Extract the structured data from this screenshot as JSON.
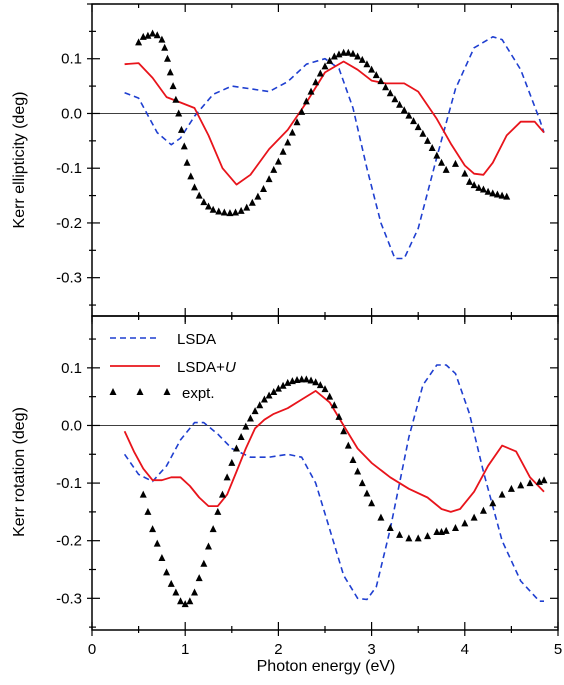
{
  "chart_data": [
    {
      "type": "line",
      "panel": "top",
      "ylabel": "Kerr ellipticity (deg)",
      "xlabel": "",
      "xlim": [
        0,
        5
      ],
      "ylim": [
        -0.37,
        0.2
      ],
      "yticks": [
        0.1,
        0.0,
        -0.1,
        -0.2,
        -0.3
      ],
      "ytick_labels": [
        "0.1",
        "0.0",
        "-0.1",
        "-0.2",
        "-0.3"
      ],
      "zero_line": true,
      "series": [
        {
          "name": "LSDA",
          "style": "dashed",
          "color": "#1f3fd0",
          "x": [
            0.35,
            0.5,
            0.7,
            0.85,
            0.95,
            1.1,
            1.3,
            1.5,
            1.7,
            1.9,
            2.1,
            2.3,
            2.5,
            2.65,
            2.8,
            2.95,
            3.1,
            3.25,
            3.35,
            3.5,
            3.7,
            3.9,
            4.1,
            4.3,
            4.4,
            4.6,
            4.8,
            4.85
          ],
          "y": [
            0.038,
            0.028,
            -0.035,
            -0.057,
            -0.045,
            -0.005,
            0.035,
            0.05,
            0.045,
            0.04,
            0.058,
            0.09,
            0.1,
            0.082,
            0.01,
            -0.1,
            -0.2,
            -0.265,
            -0.265,
            -0.21,
            -0.08,
            0.045,
            0.12,
            0.14,
            0.135,
            0.08,
            -0.01,
            -0.035
          ]
        },
        {
          "name": "LSDA+U",
          "style": "solid",
          "color": "#e8141b",
          "x": [
            0.35,
            0.5,
            0.65,
            0.8,
            0.95,
            1.1,
            1.25,
            1.4,
            1.55,
            1.7,
            1.9,
            2.1,
            2.3,
            2.5,
            2.7,
            2.85,
            3.0,
            3.15,
            3.35,
            3.5,
            3.7,
            3.85,
            4.0,
            4.1,
            4.2,
            4.3,
            4.45,
            4.6,
            4.75,
            4.85
          ],
          "y": [
            0.09,
            0.092,
            0.065,
            0.03,
            0.02,
            0.01,
            -0.04,
            -0.1,
            -0.13,
            -0.112,
            -0.065,
            -0.03,
            0.02,
            0.075,
            0.095,
            0.08,
            0.06,
            0.055,
            0.055,
            0.04,
            -0.01,
            -0.055,
            -0.095,
            -0.11,
            -0.112,
            -0.09,
            -0.04,
            -0.015,
            -0.015,
            -0.035
          ]
        },
        {
          "name": "expt.",
          "style": "markers",
          "color": "#000000",
          "x": [
            0.5,
            0.55,
            0.6,
            0.65,
            0.7,
            0.75,
            0.78,
            0.81,
            0.84,
            0.87,
            0.9,
            0.93,
            0.96,
            0.99,
            1.02,
            1.06,
            1.1,
            1.15,
            1.2,
            1.25,
            1.3,
            1.36,
            1.42,
            1.48,
            1.54,
            1.6,
            1.66,
            1.72,
            1.78,
            1.84,
            1.9,
            1.95,
            2.0,
            2.05,
            2.1,
            2.15,
            2.2,
            2.25,
            2.3,
            2.35,
            2.4,
            2.45,
            2.5,
            2.55,
            2.6,
            2.65,
            2.7,
            2.75,
            2.8,
            2.85,
            2.9,
            2.95,
            3.0,
            3.05,
            3.1,
            3.15,
            3.2,
            3.25,
            3.3,
            3.35,
            3.4,
            3.45,
            3.5,
            3.55,
            3.6,
            3.65,
            3.7,
            3.75,
            3.8,
            3.9,
            4.0,
            4.05,
            4.1,
            4.15,
            4.2,
            4.25,
            4.3,
            4.35,
            4.4,
            4.45
          ],
          "y": [
            0.13,
            0.14,
            0.142,
            0.146,
            0.143,
            0.135,
            0.12,
            0.1,
            0.075,
            0.05,
            0.025,
            0.0,
            -0.03,
            -0.06,
            -0.09,
            -0.115,
            -0.135,
            -0.15,
            -0.162,
            -0.17,
            -0.176,
            -0.179,
            -0.181,
            -0.182,
            -0.181,
            -0.178,
            -0.172,
            -0.163,
            -0.152,
            -0.138,
            -0.12,
            -0.103,
            -0.088,
            -0.07,
            -0.053,
            -0.035,
            -0.016,
            0.003,
            0.022,
            0.04,
            0.057,
            0.073,
            0.086,
            0.096,
            0.104,
            0.108,
            0.111,
            0.111,
            0.109,
            0.104,
            0.098,
            0.09,
            0.08,
            0.07,
            0.059,
            0.048,
            0.037,
            0.026,
            0.016,
            0.006,
            -0.004,
            -0.014,
            -0.025,
            -0.037,
            -0.05,
            -0.063,
            -0.077,
            -0.09,
            -0.103,
            -0.092,
            -0.11,
            -0.125,
            -0.131,
            -0.136,
            -0.139,
            -0.143,
            -0.146,
            -0.148,
            -0.15,
            -0.152
          ]
        }
      ]
    },
    {
      "type": "line",
      "panel": "bottom",
      "ylabel": "Kerr rotation (deg)",
      "xlabel": "Photon energy (eV)",
      "xlim": [
        0,
        5
      ],
      "ylim": [
        -0.355,
        0.19
      ],
      "xticks": [
        0,
        1,
        2,
        3,
        4,
        5
      ],
      "xtick_labels": [
        "0",
        "1",
        "2",
        "3",
        "4",
        "5"
      ],
      "yticks": [
        0.1,
        0.0,
        -0.1,
        -0.2,
        -0.3
      ],
      "ytick_labels": [
        "0.1",
        "0.0",
        "-0.1",
        "-0.2",
        "-0.3"
      ],
      "zero_line": true,
      "legend": {
        "placement": "top-left",
        "entries": [
          {
            "label": "LSDA",
            "style": "dashed",
            "color": "#1f3fd0"
          },
          {
            "label": "LSDA+",
            "label_italic": "U",
            "style": "solid",
            "color": "#e8141b"
          },
          {
            "label": "expt.",
            "style": "markers",
            "color": "#000000"
          }
        ]
      },
      "series": [
        {
          "name": "LSDA",
          "style": "dashed",
          "color": "#1f3fd0",
          "x": [
            0.35,
            0.5,
            0.65,
            0.8,
            0.95,
            1.1,
            1.2,
            1.35,
            1.5,
            1.7,
            1.9,
            2.1,
            2.25,
            2.4,
            2.55,
            2.7,
            2.85,
            2.95,
            3.05,
            3.2,
            3.4,
            3.55,
            3.7,
            3.8,
            3.9,
            4.05,
            4.2,
            4.4,
            4.6,
            4.8,
            4.85
          ],
          "y": [
            -0.05,
            -0.085,
            -0.097,
            -0.07,
            -0.025,
            0.005,
            0.005,
            -0.015,
            -0.04,
            -0.055,
            -0.055,
            -0.05,
            -0.055,
            -0.1,
            -0.18,
            -0.26,
            -0.3,
            -0.302,
            -0.28,
            -0.18,
            -0.02,
            0.07,
            0.105,
            0.105,
            0.09,
            0.02,
            -0.08,
            -0.2,
            -0.27,
            -0.305,
            -0.305
          ]
        },
        {
          "name": "LSDA+U",
          "style": "solid",
          "color": "#e8141b",
          "x": [
            0.35,
            0.45,
            0.55,
            0.65,
            0.75,
            0.85,
            0.95,
            1.05,
            1.15,
            1.25,
            1.35,
            1.45,
            1.55,
            1.65,
            1.75,
            1.85,
            1.95,
            2.1,
            2.25,
            2.4,
            2.55,
            2.7,
            2.85,
            3.0,
            3.2,
            3.4,
            3.6,
            3.75,
            3.85,
            3.95,
            4.1,
            4.25,
            4.4,
            4.55,
            4.7,
            4.85
          ],
          "y": [
            -0.01,
            -0.045,
            -0.075,
            -0.095,
            -0.095,
            -0.09,
            -0.09,
            -0.105,
            -0.125,
            -0.14,
            -0.14,
            -0.12,
            -0.08,
            -0.04,
            -0.005,
            0.01,
            0.02,
            0.03,
            0.045,
            0.06,
            0.04,
            0.0,
            -0.04,
            -0.065,
            -0.09,
            -0.11,
            -0.125,
            -0.145,
            -0.15,
            -0.145,
            -0.115,
            -0.07,
            -0.035,
            -0.045,
            -0.09,
            -0.115
          ]
        },
        {
          "name": "expt.",
          "style": "markers",
          "color": "#000000",
          "x": [
            0.55,
            0.6,
            0.65,
            0.7,
            0.75,
            0.8,
            0.85,
            0.9,
            0.95,
            1.0,
            1.05,
            1.1,
            1.15,
            1.2,
            1.25,
            1.3,
            1.35,
            1.4,
            1.45,
            1.5,
            1.55,
            1.6,
            1.65,
            1.7,
            1.75,
            1.8,
            1.85,
            1.9,
            1.95,
            2.0,
            2.05,
            2.1,
            2.15,
            2.2,
            2.25,
            2.3,
            2.35,
            2.4,
            2.45,
            2.5,
            2.55,
            2.6,
            2.65,
            2.7,
            2.75,
            2.8,
            2.85,
            2.9,
            2.95,
            3.0,
            3.1,
            3.2,
            3.3,
            3.4,
            3.5,
            3.6,
            3.7,
            3.75,
            3.8,
            3.9,
            4.0,
            4.1,
            4.2,
            4.3,
            4.4,
            4.5,
            4.6,
            4.7,
            4.8,
            4.85
          ],
          "y": [
            -0.12,
            -0.15,
            -0.18,
            -0.205,
            -0.23,
            -0.255,
            -0.275,
            -0.29,
            -0.305,
            -0.31,
            -0.305,
            -0.29,
            -0.265,
            -0.24,
            -0.21,
            -0.18,
            -0.15,
            -0.12,
            -0.09,
            -0.065,
            -0.04,
            -0.02,
            -0.002,
            0.012,
            0.025,
            0.035,
            0.045,
            0.052,
            0.058,
            0.064,
            0.069,
            0.074,
            0.077,
            0.079,
            0.08,
            0.08,
            0.078,
            0.075,
            0.07,
            0.063,
            0.05,
            0.035,
            0.015,
            -0.01,
            -0.035,
            -0.06,
            -0.08,
            -0.1,
            -0.118,
            -0.135,
            -0.16,
            -0.178,
            -0.19,
            -0.196,
            -0.196,
            -0.192,
            -0.185,
            -0.185,
            -0.183,
            -0.178,
            -0.17,
            -0.16,
            -0.148,
            -0.135,
            -0.12,
            -0.11,
            -0.104,
            -0.1,
            -0.098,
            -0.095
          ]
        }
      ]
    }
  ]
}
